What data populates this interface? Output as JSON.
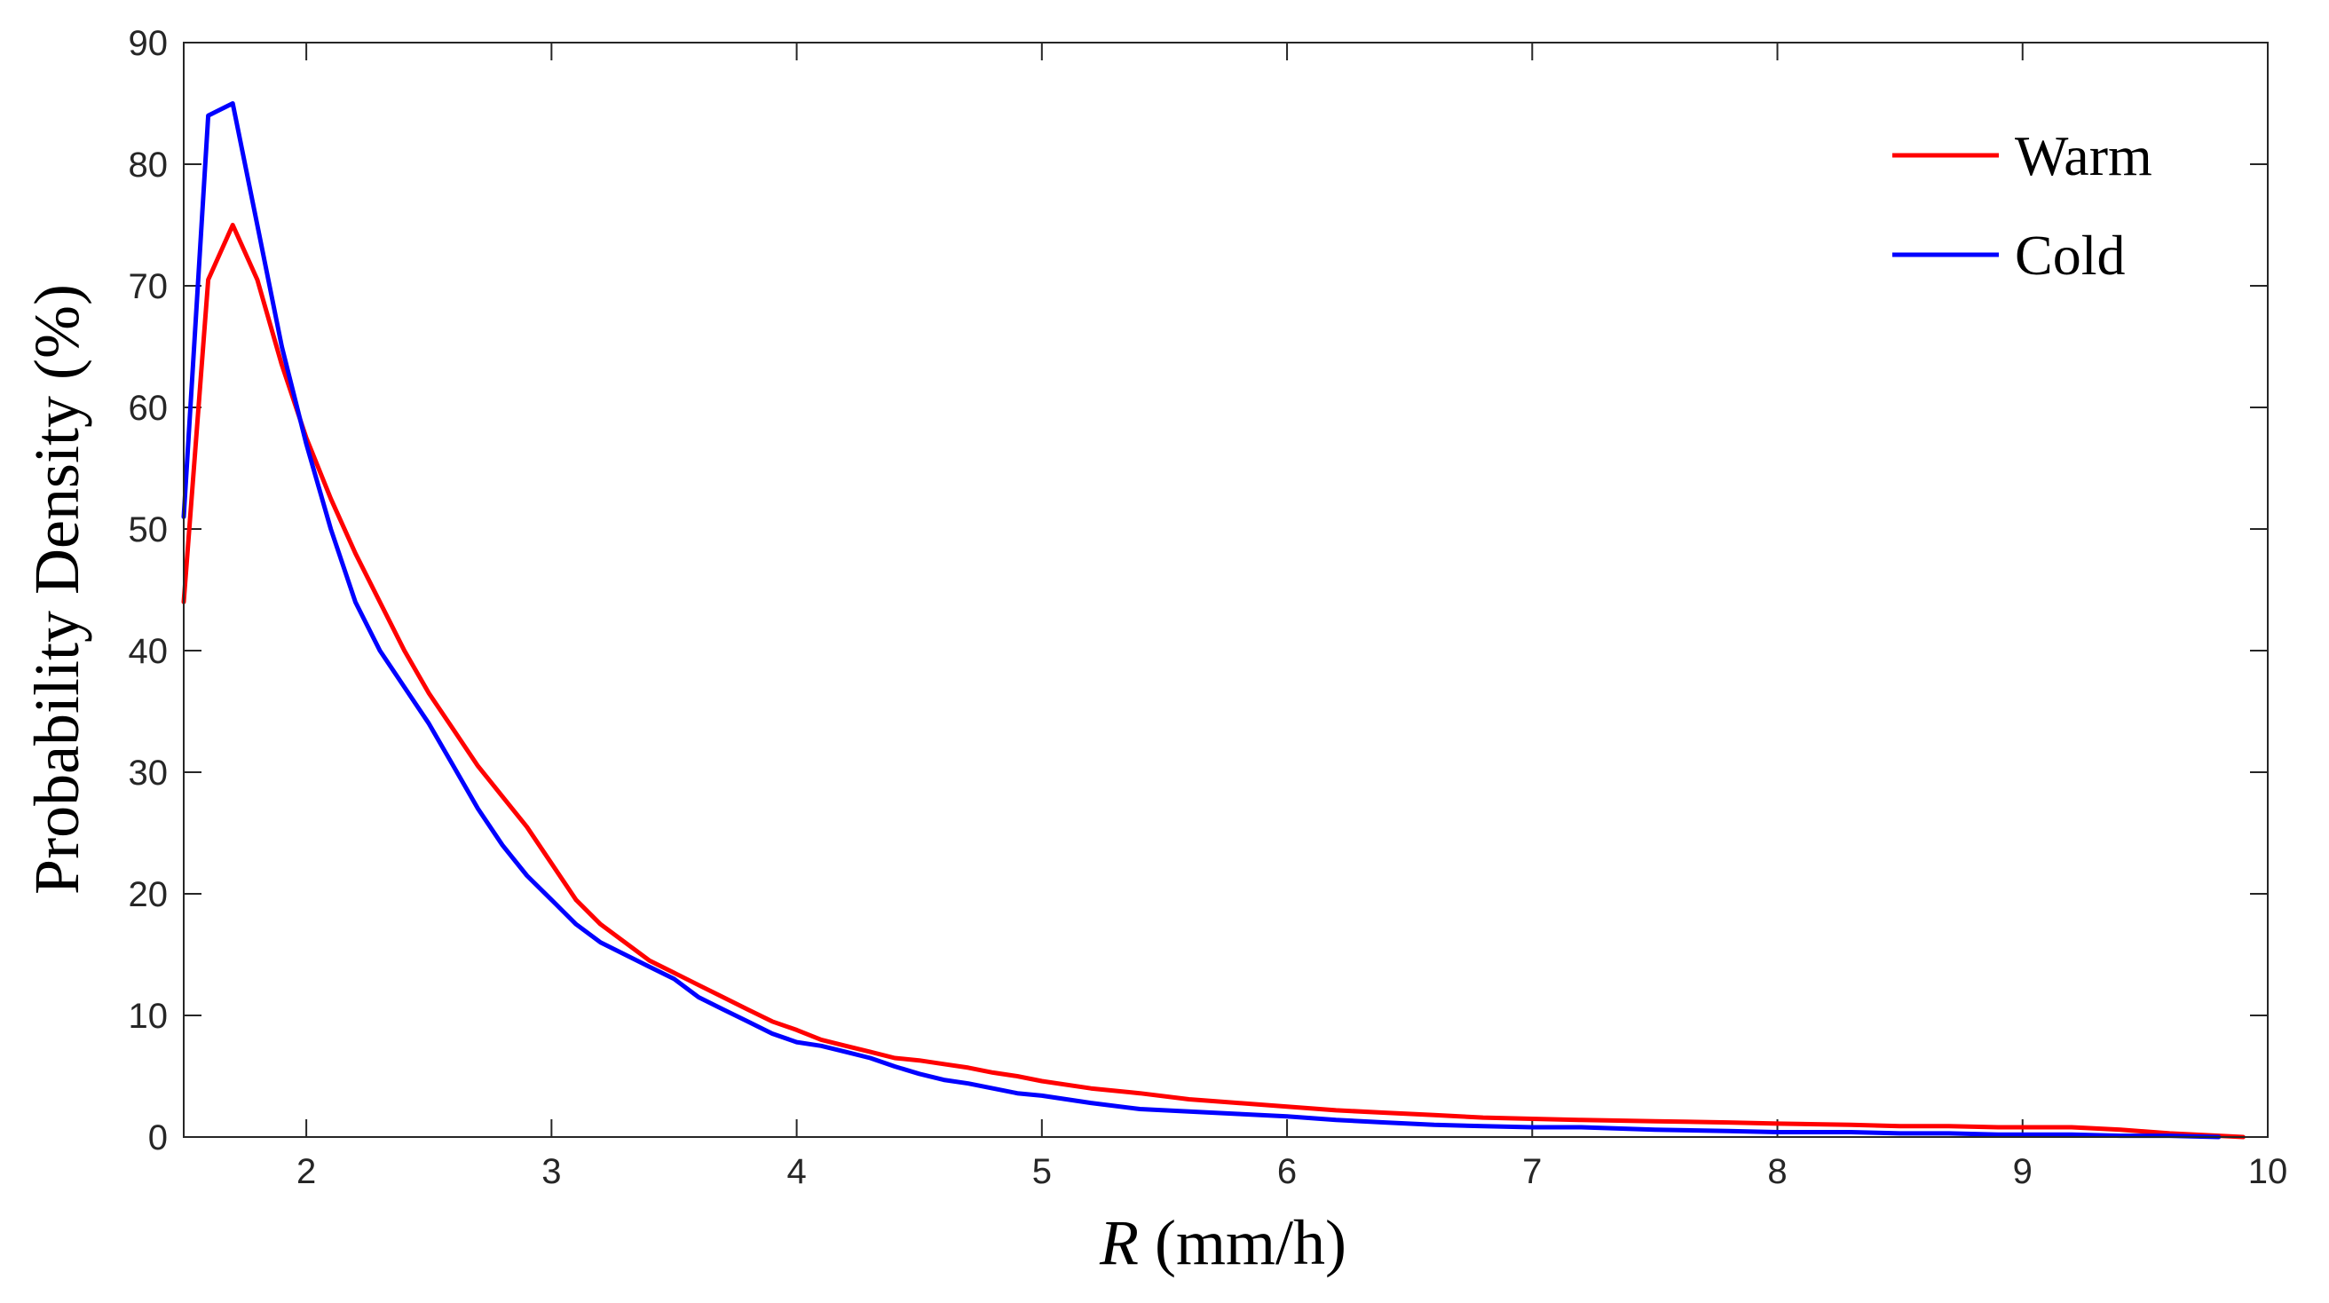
{
  "chart_data": {
    "type": "line",
    "xlabel": "R (mm/h)",
    "xlabel_var": "R",
    "xlabel_unit": " (mm/h)",
    "ylabel": "Probability Density (%)",
    "xlim": [
      1.5,
      10
    ],
    "ylim": [
      0,
      90
    ],
    "xticks": [
      2,
      3,
      4,
      5,
      6,
      7,
      8,
      9,
      10
    ],
    "yticks": [
      0,
      10,
      20,
      30,
      40,
      50,
      60,
      70,
      80,
      90
    ],
    "grid": false,
    "legend_position": "top-right",
    "series": [
      {
        "name": "Warm",
        "color": "#ff0000",
        "x": [
          1.5,
          1.6,
          1.7,
          1.8,
          1.9,
          2.0,
          2.1,
          2.2,
          2.3,
          2.4,
          2.5,
          2.6,
          2.7,
          2.8,
          2.9,
          3.0,
          3.1,
          3.2,
          3.3,
          3.4,
          3.5,
          3.6,
          3.7,
          3.8,
          3.9,
          4.0,
          4.1,
          4.2,
          4.3,
          4.4,
          4.5,
          4.6,
          4.7,
          4.8,
          4.9,
          5.0,
          5.2,
          5.4,
          5.6,
          5.8,
          6.0,
          6.2,
          6.4,
          6.6,
          6.8,
          7.0,
          7.2,
          7.5,
          7.8,
          8.0,
          8.3,
          8.5,
          8.7,
          8.9,
          9.0,
          9.2,
          9.4,
          9.6,
          9.8,
          9.9
        ],
        "y": [
          44,
          70.5,
          75,
          70.5,
          63.5,
          57.5,
          52.5,
          48,
          44,
          40,
          36.5,
          33.5,
          30.5,
          28,
          25.5,
          22.5,
          19.5,
          17.5,
          16,
          14.5,
          13.5,
          12.5,
          11.5,
          10.5,
          9.5,
          8.8,
          8,
          7.5,
          7,
          6.5,
          6.3,
          6,
          5.7,
          5.3,
          5,
          4.6,
          4,
          3.6,
          3.1,
          2.8,
          2.5,
          2.2,
          2,
          1.8,
          1.6,
          1.5,
          1.4,
          1.3,
          1.2,
          1.1,
          1.0,
          0.9,
          0.9,
          0.8,
          0.8,
          0.8,
          0.6,
          0.3,
          0.1,
          0.0
        ]
      },
      {
        "name": "Cold",
        "color": "#0000ff",
        "x": [
          1.5,
          1.6,
          1.7,
          1.8,
          1.9,
          2.0,
          2.1,
          2.2,
          2.3,
          2.4,
          2.5,
          2.6,
          2.7,
          2.8,
          2.9,
          3.0,
          3.1,
          3.2,
          3.3,
          3.4,
          3.5,
          3.6,
          3.7,
          3.8,
          3.9,
          4.0,
          4.1,
          4.2,
          4.3,
          4.4,
          4.5,
          4.6,
          4.7,
          4.8,
          4.9,
          5.0,
          5.2,
          5.4,
          5.6,
          5.8,
          6.0,
          6.2,
          6.4,
          6.6,
          6.8,
          7.0,
          7.2,
          7.5,
          7.8,
          8.0,
          8.3,
          8.5,
          8.7,
          8.9,
          9.0,
          9.2,
          9.4,
          9.6,
          9.8
        ],
        "y": [
          51,
          84,
          85,
          75,
          65,
          57,
          50,
          44,
          40,
          37,
          34,
          30.5,
          27,
          24,
          21.5,
          19.5,
          17.5,
          16,
          15,
          14,
          13,
          11.5,
          10.5,
          9.5,
          8.5,
          7.8,
          7.5,
          7,
          6.5,
          5.8,
          5.2,
          4.7,
          4.4,
          4.0,
          3.6,
          3.4,
          2.8,
          2.3,
          2.1,
          1.9,
          1.7,
          1.4,
          1.2,
          1.0,
          0.9,
          0.8,
          0.8,
          0.6,
          0.5,
          0.4,
          0.4,
          0.3,
          0.3,
          0.2,
          0.2,
          0.2,
          0.1,
          0.1,
          0.0
        ]
      }
    ]
  }
}
